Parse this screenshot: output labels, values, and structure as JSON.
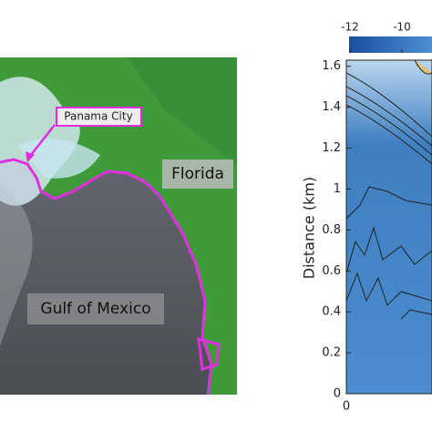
{
  "map": {
    "labels": [
      "Panama City",
      "Florida",
      "Gulf of Mexico"
    ]
  },
  "plot": {
    "y_label": "Distance (km)",
    "ylim": [
      0,
      1.63
    ],
    "y_ticks": [
      0,
      0.2,
      0.4,
      0.6,
      0.8,
      1,
      1.2,
      1.4,
      1.6
    ],
    "x_ticks": [
      0
    ],
    "colorbar_ticks": [
      -12,
      -10
    ]
  }
}
